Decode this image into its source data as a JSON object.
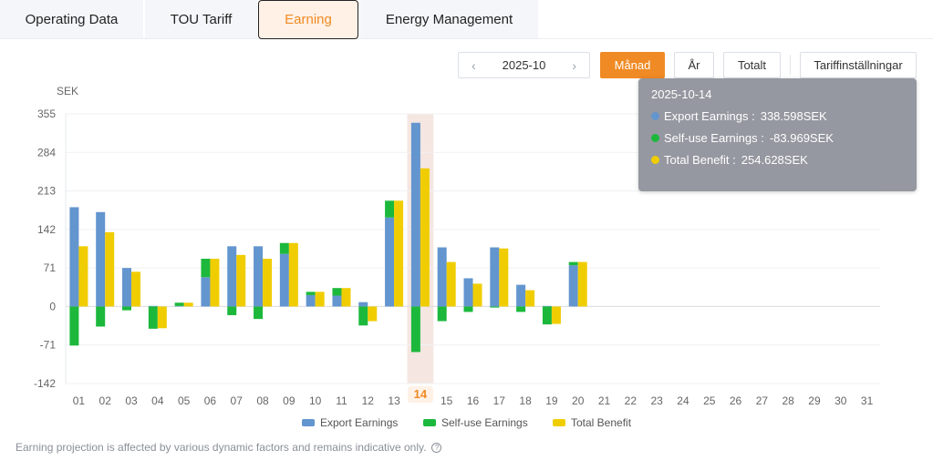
{
  "tabs": [
    {
      "label": "Operating Data",
      "active": false
    },
    {
      "label": "TOU Tariff",
      "active": false
    },
    {
      "label": "Earning",
      "active": true
    },
    {
      "label": "Energy Management",
      "active": false
    }
  ],
  "toolbar": {
    "month_value": "2025-10",
    "prev_icon": "chevron-left-icon",
    "next_icon": "chevron-right-icon",
    "month_label": "Månad",
    "year_label": "År",
    "total_label": "Totalt",
    "tariff_settings_label": "Tariffinställningar",
    "active_period": "Månad"
  },
  "colors": {
    "export": "#6395cf",
    "self_use": "#1cb83c",
    "total": "#f0cd00",
    "accent": "#f08a24",
    "highlight_band": "#f5e6e1"
  },
  "tooltip": {
    "date": "2025-10-14",
    "rows": [
      {
        "label": "Export Earnings :",
        "value": "338.598SEK",
        "color": "#6395cf"
      },
      {
        "label": "Self-use Earnings :",
        "value": "-83.969SEK",
        "color": "#1cb83c"
      },
      {
        "label": "Total Benefit :",
        "value": "254.628SEK",
        "color": "#f0cd00"
      }
    ]
  },
  "chart_data": {
    "type": "bar",
    "title": "",
    "ylabel": "SEK",
    "xlabel": "",
    "ylim": [
      -142,
      355
    ],
    "yticks": [
      355,
      284,
      213,
      142,
      71,
      0,
      -71,
      -142
    ],
    "grid": true,
    "legend_placement": "bottom-center",
    "highlighted_category": "14",
    "categories": [
      "01",
      "02",
      "03",
      "04",
      "05",
      "06",
      "07",
      "08",
      "09",
      "10",
      "11",
      "12",
      "13",
      "14",
      "15",
      "16",
      "17",
      "18",
      "19",
      "20",
      "21",
      "22",
      "23",
      "24",
      "25",
      "26",
      "27",
      "28",
      "29",
      "30",
      "31"
    ],
    "series": [
      {
        "name": "Export Earnings",
        "stack": "a",
        "values": [
          183,
          174,
          71,
          1,
          1,
          54,
          111,
          111,
          97,
          21,
          20,
          8,
          164,
          338.598,
          109,
          52,
          109,
          40,
          1,
          76,
          null,
          null,
          null,
          null,
          null,
          null,
          null,
          null,
          null,
          null,
          null
        ]
      },
      {
        "name": "Self-use Earnings",
        "stack": "a",
        "values": [
          -72,
          -37,
          -7,
          -41,
          6,
          34,
          -16,
          -23,
          20,
          6,
          14,
          -35,
          31,
          -83.969,
          -27,
          -10,
          -2,
          -10,
          -33,
          6,
          null,
          null,
          null,
          null,
          null,
          null,
          null,
          null,
          null,
          null,
          null
        ]
      },
      {
        "name": "Total Benefit",
        "stack": "b",
        "values": [
          111,
          137,
          64,
          -40,
          7,
          88,
          95,
          88,
          117,
          27,
          34,
          -27,
          195,
          254.628,
          82,
          42,
          107,
          30,
          -32,
          82,
          null,
          null,
          null,
          null,
          null,
          null,
          null,
          null,
          null,
          null,
          null
        ]
      }
    ]
  },
  "footnote": "Earning projection is affected by various dynamic factors and remains indicative only."
}
